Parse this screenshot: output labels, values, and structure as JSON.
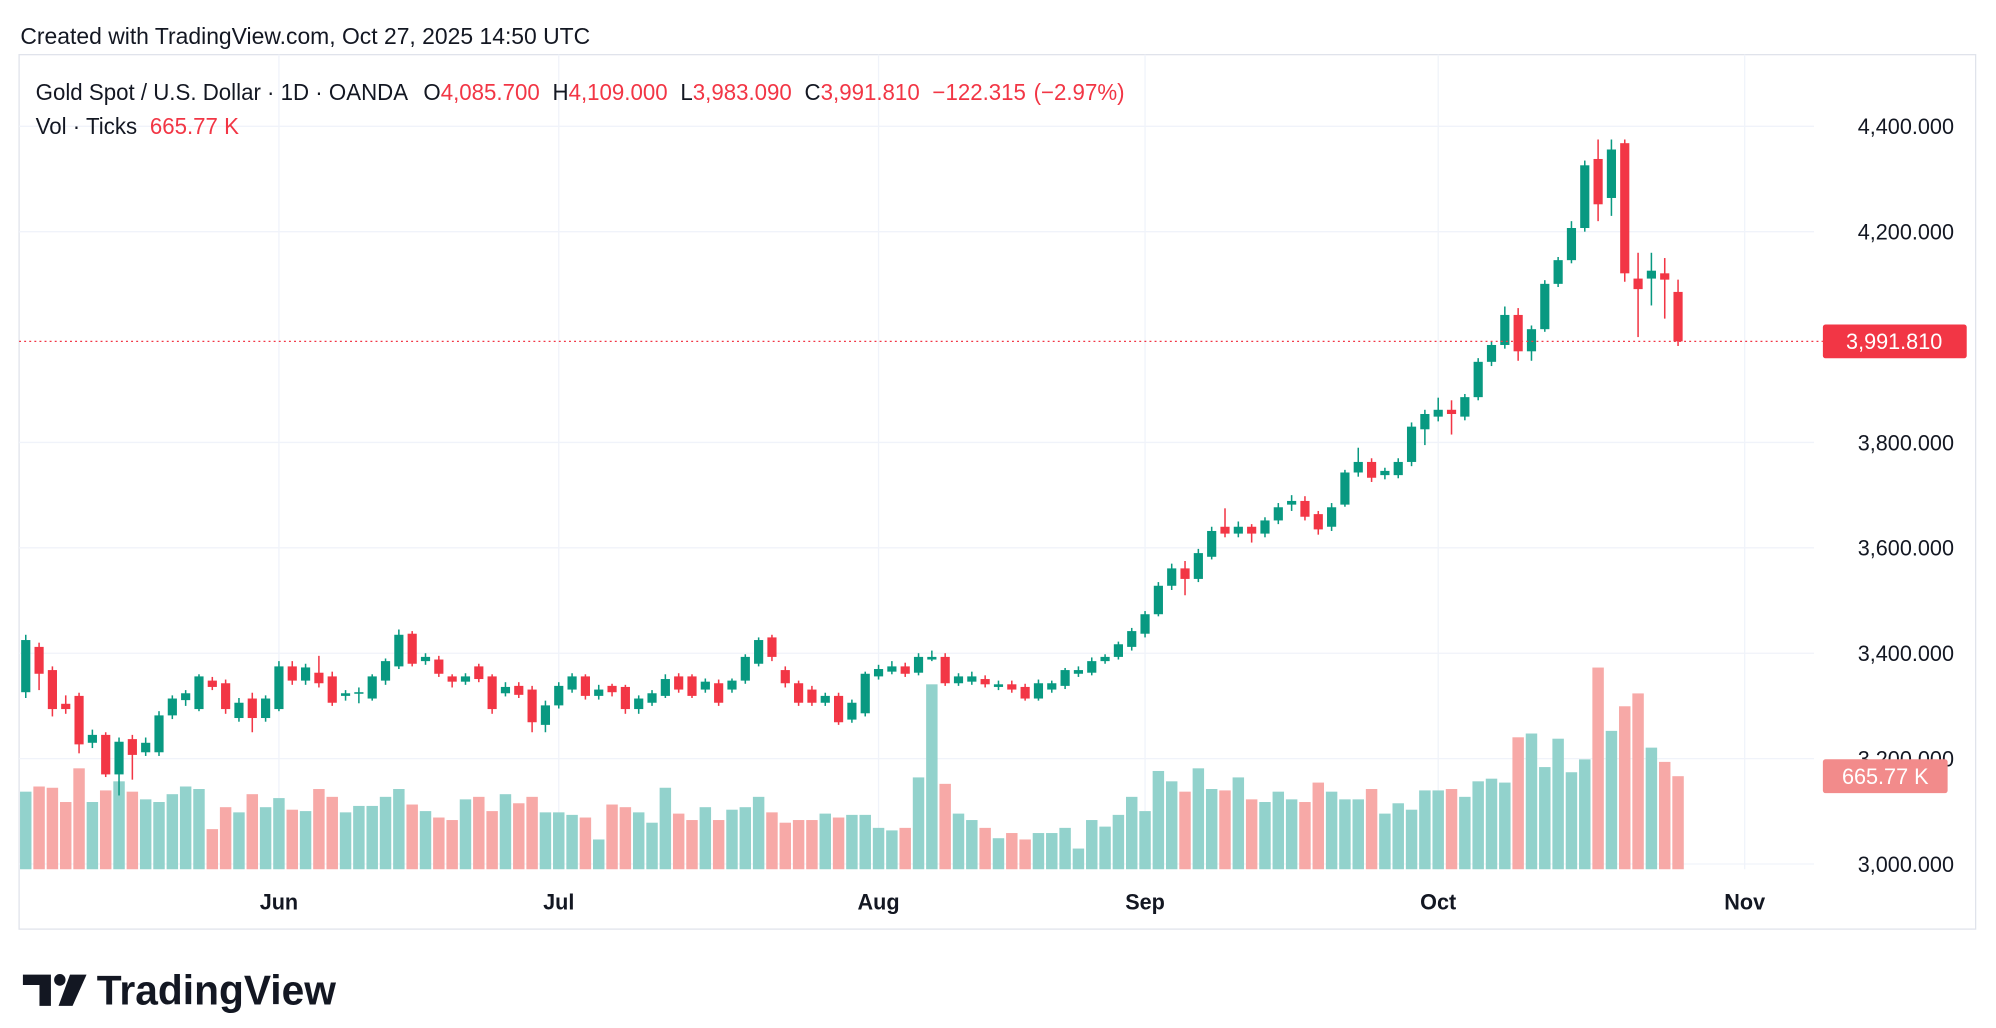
{
  "header": "Created with TradingView.com, Oct 27, 2025 14:50 UTC",
  "footer_brand": "TradingView",
  "chart_data": {
    "type": "candlestick",
    "title": "Gold Spot / U.S. Dollar · 1D · OANDA",
    "ohlc": [
      {
        "prefix": "O",
        "value": 4085.7,
        "label": "4,085.700"
      },
      {
        "prefix": "H",
        "value": 4109,
        "label": "4,109.000"
      },
      {
        "prefix": "L",
        "value": 3983.09,
        "label": "3,983.090"
      },
      {
        "prefix": "C",
        "value": 3991.81,
        "label": "3,991.810"
      }
    ],
    "change": {
      "value": -122.315,
      "label": "−122.315"
    },
    "change_pct": {
      "value": -2.97,
      "label": "(−2.97%)"
    },
    "last_volume_label": "665.77 K",
    "up_color": "#089981",
    "down_color": "#f23645",
    "volume_up_color": "#92d2cc",
    "volume_down_color": "#f7a9a7",
    "grid": true,
    "xlim": [
      -0.5,
      134.2
    ],
    "xticks": [
      {
        "value": 19,
        "label": "Jun"
      },
      {
        "value": 40,
        "label": "Jul"
      },
      {
        "value": 64,
        "label": "Aug"
      },
      {
        "value": 84,
        "label": "Sep"
      },
      {
        "value": 106,
        "label": "Oct"
      },
      {
        "value": 129,
        "label": "Nov"
      }
    ],
    "ylim": [
      2990,
      4536
    ],
    "yticks": [
      {
        "value": 3000,
        "label": "3,000.000"
      },
      {
        "value": 3200,
        "label": "3,200.000"
      },
      {
        "value": 3400,
        "label": "3,400.000"
      },
      {
        "value": 3600,
        "label": "3,600.000"
      },
      {
        "value": 3800,
        "label": "3,800.000"
      },
      {
        "value": 4200,
        "label": "4,200.000"
      },
      {
        "value": 4400,
        "label": "4,400.000"
      }
    ],
    "series": [
      {
        "name": "Gold Spot / U.S. Dollar",
        "open": [
          3326,
          3412,
          3368,
          3304,
          3319,
          3230,
          3245,
          3170,
          3237,
          3212,
          3212,
          3282,
          3311,
          3294,
          3348,
          3343,
          3277,
          3314,
          3277,
          3294,
          3375,
          3348,
          3363,
          3356,
          3319,
          3324,
          3314,
          3348,
          3375,
          3437,
          3385,
          3388,
          3356,
          3346,
          3375,
          3356,
          3324,
          3338,
          3331,
          3264,
          3301,
          3331,
          3356,
          3319,
          3338,
          3336,
          3294,
          3306,
          3319,
          3356,
          3356,
          3331,
          3343,
          3331,
          3348,
          3380,
          3430,
          3368,
          3343,
          3331,
          3306,
          3319,
          3274,
          3286,
          3356,
          3365,
          3375,
          3363,
          3388,
          3393,
          3343,
          3346,
          3351,
          3336,
          3341,
          3336,
          3314,
          3331,
          3338,
          3361,
          3363,
          3385,
          3393,
          3412,
          3437,
          3474,
          3528,
          3561,
          3541,
          3583,
          3640,
          3627,
          3640,
          3627,
          3652,
          3682,
          3689,
          3664,
          3640,
          3682,
          3743,
          3763,
          3738,
          3738,
          3763,
          3825,
          3849,
          3862,
          3849,
          3886,
          3953,
          3985,
          4042,
          3973,
          4015,
          4101,
          4146,
          4207,
          4338,
          4264,
          4368,
          4111,
          4111,
          4121,
          4085.7
        ],
        "high": [
          3435,
          3420,
          3375,
          3320,
          3325,
          3255,
          3250,
          3240,
          3245,
          3240,
          3290,
          3320,
          3330,
          3360,
          3355,
          3350,
          3315,
          3325,
          3320,
          3385,
          3385,
          3380,
          3395,
          3365,
          3330,
          3335,
          3360,
          3390,
          3445,
          3442,
          3400,
          3395,
          3360,
          3362,
          3380,
          3360,
          3345,
          3345,
          3338,
          3310,
          3345,
          3362,
          3360,
          3340,
          3342,
          3340,
          3320,
          3330,
          3360,
          3362,
          3360,
          3352,
          3350,
          3352,
          3398,
          3430,
          3435,
          3375,
          3348,
          3338,
          3325,
          3325,
          3312,
          3365,
          3378,
          3385,
          3382,
          3400,
          3405,
          3400,
          3362,
          3365,
          3358,
          3348,
          3348,
          3342,
          3350,
          3348,
          3372,
          3375,
          3392,
          3398,
          3422,
          3448,
          3480,
          3535,
          3570,
          3575,
          3598,
          3640,
          3675,
          3650,
          3645,
          3658,
          3685,
          3700,
          3698,
          3670,
          3685,
          3748,
          3790,
          3770,
          3752,
          3770,
          3838,
          3862,
          3885,
          3880,
          3892,
          3960,
          3992,
          4058,
          4055,
          4022,
          4108,
          4152,
          4220,
          4335,
          4375,
          4375,
          4375,
          4160,
          4160,
          4150,
          4109
        ],
        "low": [
          3315,
          3330,
          3280,
          3285,
          3210,
          3220,
          3165,
          3130,
          3160,
          3205,
          3205,
          3275,
          3300,
          3290,
          3330,
          3285,
          3270,
          3250,
          3270,
          3290,
          3340,
          3340,
          3335,
          3300,
          3310,
          3305,
          3310,
          3340,
          3370,
          3375,
          3378,
          3355,
          3335,
          3340,
          3345,
          3285,
          3318,
          3315,
          3250,
          3250,
          3295,
          3325,
          3312,
          3312,
          3318,
          3285,
          3285,
          3300,
          3315,
          3325,
          3315,
          3325,
          3300,
          3325,
          3342,
          3375,
          3385,
          3335,
          3300,
          3300,
          3300,
          3264,
          3268,
          3280,
          3350,
          3360,
          3355,
          3358,
          3385,
          3338,
          3338,
          3340,
          3335,
          3330,
          3325,
          3310,
          3310,
          3325,
          3332,
          3355,
          3358,
          3380,
          3388,
          3405,
          3430,
          3470,
          3520,
          3510,
          3535,
          3578,
          3620,
          3620,
          3610,
          3620,
          3645,
          3670,
          3652,
          3625,
          3632,
          3678,
          3735,
          3725,
          3730,
          3732,
          3755,
          3795,
          3840,
          3815,
          3842,
          3880,
          3945,
          3978,
          3955,
          3955,
          4010,
          4095,
          4140,
          4200,
          4220,
          4230,
          4105,
          4000,
          4060,
          4035,
          3983.09
        ],
        "close": [
          3425,
          3361,
          3294,
          3294,
          3227,
          3245,
          3170,
          3232,
          3207,
          3230,
          3282,
          3314,
          3324,
          3356,
          3336,
          3294,
          3306,
          3277,
          3314,
          3375,
          3348,
          3373,
          3343,
          3306,
          3324,
          3326,
          3356,
          3385,
          3435,
          3380,
          3393,
          3361,
          3346,
          3356,
          3351,
          3294,
          3336,
          3321,
          3269,
          3301,
          3338,
          3356,
          3319,
          3331,
          3326,
          3294,
          3314,
          3324,
          3351,
          3331,
          3319,
          3346,
          3306,
          3348,
          3393,
          3425,
          3393,
          3343,
          3306,
          3306,
          3319,
          3269,
          3306,
          3361,
          3370,
          3375,
          3361,
          3393,
          3393,
          3343,
          3356,
          3356,
          3341,
          3341,
          3331,
          3314,
          3343,
          3343,
          3368,
          3368,
          3385,
          3393,
          3417,
          3442,
          3474,
          3528,
          3561,
          3541,
          3590,
          3632,
          3627,
          3640,
          3627,
          3652,
          3677,
          3689,
          3659,
          3635,
          3677,
          3743,
          3763,
          3733,
          3746,
          3763,
          3830,
          3854,
          3862,
          3854,
          3886,
          3953,
          3985,
          4042,
          3973,
          4015,
          4101,
          4146,
          4207,
          4326,
          4252,
          4356,
          4121,
          4091,
          4126,
          4109,
          3991.81
        ]
      },
      {
        "name": "Vol · Ticks",
        "values": [
          555,
          592,
          583,
          481,
          722,
          481,
          564,
          629,
          555,
          500,
          481,
          537,
          592,
          574,
          287,
          444,
          407,
          537,
          444,
          509,
          426,
          416,
          574,
          518,
          407,
          453,
          453,
          518,
          574,
          463,
          416,
          370,
          352,
          500,
          518,
          416,
          537,
          472,
          518,
          407,
          407,
          389,
          370,
          213,
          463,
          444,
          407,
          333,
          583,
          398,
          352,
          444,
          352,
          426,
          444,
          518,
          407,
          333,
          352,
          352,
          398,
          370,
          389,
          389,
          296,
          278,
          296,
          657,
          1323,
          611,
          398,
          352,
          296,
          222,
          259,
          213,
          259,
          259,
          296,
          148,
          352,
          305,
          389,
          518,
          416,
          703,
          629,
          555,
          722,
          574,
          564,
          657,
          500,
          481,
          555,
          500,
          481,
          620,
          555,
          500,
          500,
          574,
          398,
          472,
          426,
          564,
          564,
          574,
          518,
          629,
          648,
          620,
          944,
          971,
          731,
          934,
          694,
          786,
          1443,
          990,
          1166,
          1258,
          870,
          768,
          665.77
        ]
      }
    ]
  }
}
